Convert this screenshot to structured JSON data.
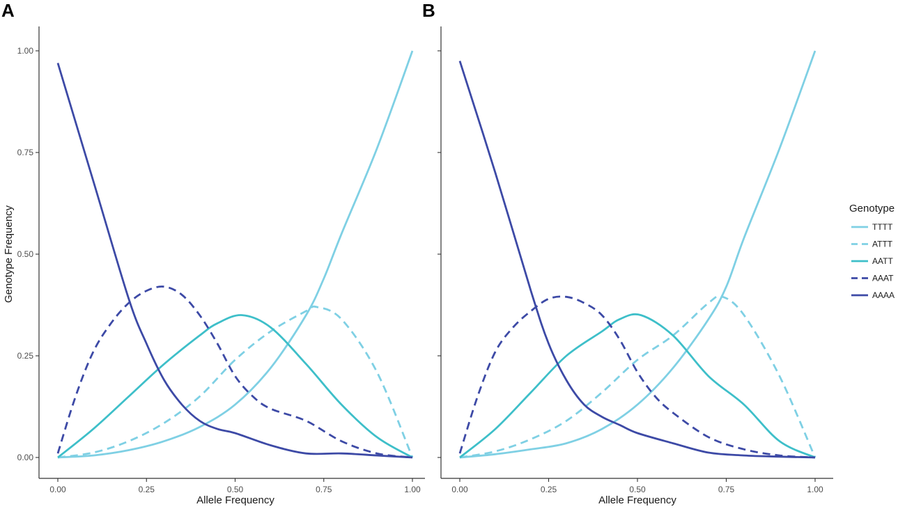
{
  "chart_data": {
    "type": "line",
    "xlabel": "Allele Frequency",
    "ylabel": "Genotype Frequency",
    "xlim": [
      0,
      1
    ],
    "ylim": [
      0,
      1
    ],
    "x_ticks": [
      "0.00",
      "0.25",
      "0.50",
      "0.75",
      "1.00"
    ],
    "y_ticks": [
      "0.00",
      "0.25",
      "0.50",
      "0.75",
      "1.00"
    ],
    "grid": false,
    "legend": {
      "title": "Genotype",
      "position": "right",
      "entries": [
        {
          "label": "TTTT",
          "color": "#7fd0e4",
          "dash": "solid"
        },
        {
          "label": "ATTT",
          "color": "#7fd0e4",
          "dash": "dashed"
        },
        {
          "label": "AATT",
          "color": "#3ebfc9",
          "dash": "solid"
        },
        {
          "label": "AAAT",
          "color": "#3d4aa6",
          "dash": "dashed"
        },
        {
          "label": "AAAA",
          "color": "#3d4aa6",
          "dash": "solid"
        }
      ]
    },
    "panels": [
      {
        "letter": "A",
        "series": [
          {
            "name": "TTTT",
            "x": [
              0,
              0.1,
              0.2,
              0.3,
              0.4,
              0.5,
              0.6,
              0.7,
              0.75,
              0.8,
              0.9,
              1.0
            ],
            "y": [
              0,
              0.005,
              0.018,
              0.04,
              0.075,
              0.13,
              0.22,
              0.35,
              0.44,
              0.55,
              0.76,
              1.0
            ]
          },
          {
            "name": "ATTT",
            "x": [
              0,
              0.1,
              0.2,
              0.3,
              0.4,
              0.5,
              0.6,
              0.7,
              0.73,
              0.8,
              0.9,
              1.0
            ],
            "y": [
              0,
              0.012,
              0.04,
              0.085,
              0.15,
              0.24,
              0.31,
              0.36,
              0.37,
              0.34,
              0.21,
              0
            ]
          },
          {
            "name": "AATT",
            "x": [
              0,
              0.1,
              0.2,
              0.3,
              0.4,
              0.45,
              0.52,
              0.6,
              0.7,
              0.8,
              0.9,
              1.0
            ],
            "y": [
              0,
              0.07,
              0.15,
              0.23,
              0.3,
              0.33,
              0.35,
              0.32,
              0.23,
              0.13,
              0.05,
              0
            ]
          },
          {
            "name": "AAAT",
            "x": [
              0,
              0.05,
              0.1,
              0.15,
              0.2,
              0.25,
              0.3,
              0.35,
              0.4,
              0.45,
              0.5,
              0.55,
              0.6,
              0.7,
              0.8,
              0.9,
              1.0
            ],
            "y": [
              0.01,
              0.15,
              0.26,
              0.33,
              0.38,
              0.41,
              0.42,
              0.4,
              0.35,
              0.28,
              0.2,
              0.15,
              0.12,
              0.09,
              0.04,
              0.01,
              0
            ]
          },
          {
            "name": "AAAA",
            "x": [
              0,
              0.1,
              0.2,
              0.25,
              0.3,
              0.35,
              0.4,
              0.45,
              0.5,
              0.6,
              0.7,
              0.8,
              0.9,
              1.0
            ],
            "y": [
              0.97,
              0.68,
              0.39,
              0.28,
              0.19,
              0.13,
              0.09,
              0.07,
              0.06,
              0.03,
              0.01,
              0.01,
              0.005,
              0
            ]
          }
        ]
      },
      {
        "letter": "B",
        "series": [
          {
            "name": "TTTT",
            "x": [
              0,
              0.1,
              0.2,
              0.3,
              0.4,
              0.5,
              0.6,
              0.7,
              0.75,
              0.8,
              0.9,
              1.0
            ],
            "y": [
              0,
              0.008,
              0.02,
              0.035,
              0.07,
              0.13,
              0.22,
              0.34,
              0.42,
              0.54,
              0.76,
              1.0
            ]
          },
          {
            "name": "ATTT",
            "x": [
              0,
              0.1,
              0.2,
              0.3,
              0.4,
              0.5,
              0.6,
              0.7,
              0.74,
              0.8,
              0.9,
              1.0
            ],
            "y": [
              0,
              0.015,
              0.045,
              0.09,
              0.16,
              0.24,
              0.3,
              0.38,
              0.395,
              0.35,
              0.2,
              0
            ]
          },
          {
            "name": "AATT",
            "x": [
              0,
              0.1,
              0.2,
              0.3,
              0.4,
              0.45,
              0.51,
              0.6,
              0.7,
              0.8,
              0.9,
              1.0
            ],
            "y": [
              0,
              0.07,
              0.16,
              0.25,
              0.31,
              0.34,
              0.35,
              0.3,
              0.2,
              0.13,
              0.04,
              0
            ]
          },
          {
            "name": "AAAT",
            "x": [
              0,
              0.05,
              0.1,
              0.15,
              0.2,
              0.25,
              0.3,
              0.35,
              0.4,
              0.45,
              0.5,
              0.55,
              0.6,
              0.7,
              0.8,
              0.9,
              1.0
            ],
            "y": [
              0.01,
              0.15,
              0.26,
              0.32,
              0.36,
              0.39,
              0.395,
              0.38,
              0.35,
              0.29,
              0.21,
              0.15,
              0.11,
              0.05,
              0.02,
              0.005,
              0
            ]
          },
          {
            "name": "AAAA",
            "x": [
              0,
              0.1,
              0.2,
              0.25,
              0.3,
              0.35,
              0.4,
              0.45,
              0.5,
              0.6,
              0.7,
              0.8,
              0.9,
              1.0
            ],
            "y": [
              0.975,
              0.7,
              0.41,
              0.28,
              0.19,
              0.13,
              0.1,
              0.08,
              0.06,
              0.035,
              0.012,
              0.005,
              0.002,
              0
            ]
          }
        ]
      }
    ]
  }
}
